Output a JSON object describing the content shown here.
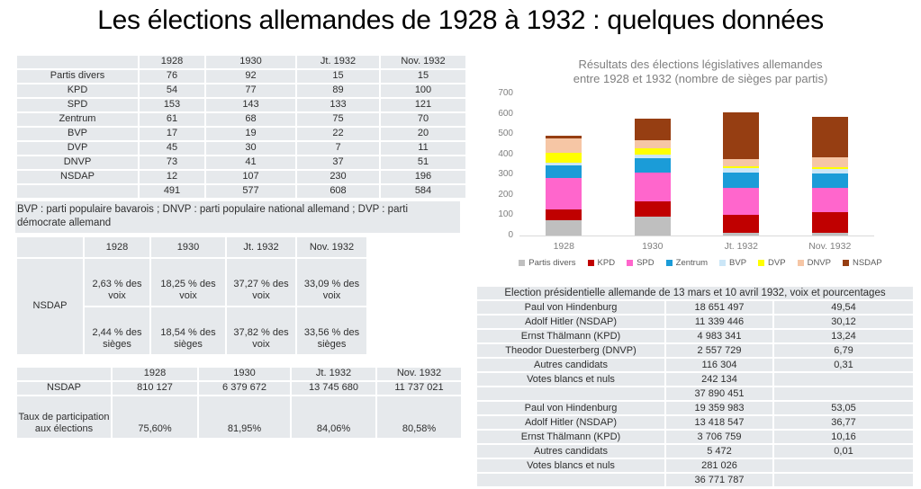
{
  "title": "Les élections allemandes de 1928 à 1932 : quelques données",
  "colors": {
    "title_text": "#000000",
    "table_cell_bg": "#E6E9EC",
    "chart_text": "#7F7F7F",
    "legend_text": "#595959",
    "axis_line": "#D9D9D9"
  },
  "seats_table": {
    "columns": [
      "",
      "1928",
      "1930",
      "Jt. 1932",
      "Nov. 1932"
    ],
    "rows": [
      {
        "label": "Partis divers",
        "values": [
          "76",
          "92",
          "15",
          "15"
        ]
      },
      {
        "label": "KPD",
        "values": [
          "54",
          "77",
          "89",
          "100"
        ]
      },
      {
        "label": "SPD",
        "values": [
          "153",
          "143",
          "133",
          "121"
        ]
      },
      {
        "label": "Zentrum",
        "values": [
          "61",
          "68",
          "75",
          "70"
        ]
      },
      {
        "label": "BVP",
        "values": [
          "17",
          "19",
          "22",
          "20"
        ]
      },
      {
        "label": "DVP",
        "values": [
          "45",
          "30",
          "7",
          "11"
        ]
      },
      {
        "label": "DNVP",
        "values": [
          "73",
          "41",
          "37",
          "51"
        ]
      },
      {
        "label": "NSDAP",
        "values": [
          "12",
          "107",
          "230",
          "196"
        ]
      },
      {
        "label": "",
        "values": [
          "491",
          "577",
          "608",
          "584"
        ]
      }
    ],
    "note": "BVP : parti populaire bavarois ; DNVP : parti populaire national allemand ; DVP : parti démocrate allemand"
  },
  "nsdap_share_table": {
    "columns": [
      "",
      "1928",
      "1930",
      "Jt. 1932",
      "Nov. 1932"
    ],
    "row_label": "NSDAP",
    "voix_row": [
      "2,63 % des voix",
      "18,25 % des voix",
      "37,27 % des voix",
      "33,09 % des voix"
    ],
    "sieges_row": [
      "2,44 % des sièges",
      "18,54 % des sièges",
      "37,82 % des voix",
      "33,56 % des sièges"
    ]
  },
  "nsdap_votes_table": {
    "columns": [
      "",
      "1928",
      "1930",
      "Jt. 1932",
      "Nov. 1932"
    ],
    "rows": [
      {
        "label": "NSDAP",
        "values": [
          "810 127",
          "6 379 672",
          "13 745 680",
          "11 737 021"
        ]
      },
      {
        "label": "Taux de participation aux élections",
        "values": [
          "75,60%",
          "81,95%",
          "84,06%",
          "80,58%"
        ]
      }
    ]
  },
  "chart_data": {
    "type": "bar",
    "stacked": true,
    "title": "Résultats des élections législatives allemandes entre 1928 et 1932 (nombre de sièges par partis)",
    "title_line1": "Résultats des élections législatives allemandes",
    "title_line2": "entre 1928 et 1932 (nombre de sièges par partis)",
    "categories": [
      "1928",
      "1930",
      "Jt. 1932",
      "Nov. 1932"
    ],
    "series": [
      {
        "name": "Partis divers",
        "color": "#BFBFBF",
        "values": [
          76,
          92,
          15,
          15
        ]
      },
      {
        "name": "KPD",
        "color": "#C00000",
        "values": [
          54,
          77,
          89,
          100
        ]
      },
      {
        "name": "SPD",
        "color": "#FF66CC",
        "values": [
          153,
          143,
          133,
          121
        ]
      },
      {
        "name": "Zentrum",
        "color": "#1B9CD8",
        "values": [
          61,
          68,
          75,
          70
        ]
      },
      {
        "name": "BVP",
        "color": "#CBE6F7",
        "values": [
          17,
          19,
          22,
          20
        ]
      },
      {
        "name": "DVP",
        "color": "#FFFF00",
        "values": [
          45,
          30,
          7,
          11
        ]
      },
      {
        "name": "DNVP",
        "color": "#F6C6A5",
        "values": [
          73,
          41,
          37,
          51
        ]
      },
      {
        "name": "NSDAP",
        "color": "#963E12",
        "values": [
          12,
          107,
          230,
          196
        ]
      }
    ],
    "totals": [
      491,
      577,
      608,
      584
    ],
    "xlabel": "",
    "ylabel": "",
    "ylim": [
      0,
      700
    ],
    "yticks": [
      0,
      100,
      200,
      300,
      400,
      500,
      600,
      700
    ],
    "grid": false,
    "legend_position": "bottom"
  },
  "presidential_table": {
    "header": "Election présidentielle allemande de 13 mars et 10 avril 1932, voix et pourcentages",
    "rows": [
      [
        "Paul von Hindenburg",
        "18 651 497",
        "49,54"
      ],
      [
        "Adolf Hitler (NSDAP)",
        "11 339 446",
        "30,12"
      ],
      [
        "Ernst Thälmann (KPD)",
        "4 983 341",
        "13,24"
      ],
      [
        "Theodor Duesterberg (DNVP)",
        "2 557 729",
        "6,79"
      ],
      [
        "Autres candidats",
        "116 304",
        "0,31"
      ],
      [
        "Votes blancs et nuls",
        "242 134",
        ""
      ],
      [
        "",
        "37 890 451",
        ""
      ],
      [
        "Paul von Hindenburg",
        "19 359 983",
        "53,05"
      ],
      [
        "Adolf Hitler (NSDAP)",
        "13 418 547",
        "36,77"
      ],
      [
        "Ernst Thälmann (KPD)",
        "3 706 759",
        "10,16"
      ],
      [
        "Autres candidats",
        "5 472",
        "0,01"
      ],
      [
        "Votes blancs et nuls",
        "281 026",
        ""
      ],
      [
        "",
        "36 771 787",
        ""
      ]
    ]
  }
}
